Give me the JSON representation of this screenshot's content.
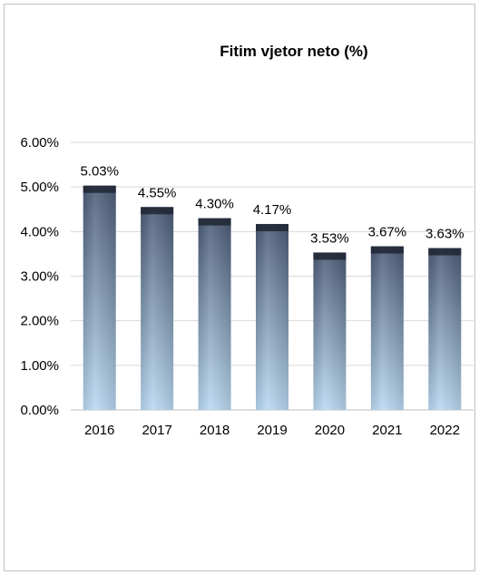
{
  "chart_data": {
    "type": "bar",
    "title": "Fitim vjetor neto (%)",
    "xlabel": "",
    "ylabel": "",
    "categories": [
      "2016",
      "2017",
      "2018",
      "2019",
      "2020",
      "2021",
      "2022"
    ],
    "values": [
      5.03,
      4.55,
      4.3,
      4.17,
      3.53,
      3.67,
      3.63
    ],
    "data_labels": [
      "5.03%",
      "4.55%",
      "4.30%",
      "4.17%",
      "3.53%",
      "3.67%",
      "3.63%"
    ],
    "ylim": [
      0,
      6
    ],
    "yticks": [
      0,
      1,
      2,
      3,
      4,
      5,
      6
    ],
    "ytick_labels": [
      "0.00%",
      "1.00%",
      "2.00%",
      "3.00%",
      "4.00%",
      "5.00%",
      "6.00%"
    ],
    "grid": true,
    "legend": "none",
    "colors": {
      "bar_top": "#4a5a75",
      "bar_bottom": "#b9d9f2",
      "gridline": "#d9d9d9",
      "axis": "#bfbfbf"
    }
  }
}
